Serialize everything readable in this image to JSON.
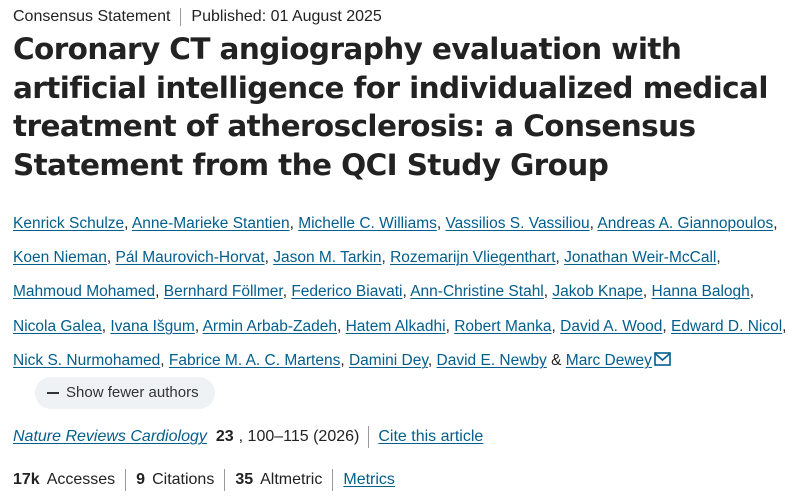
{
  "header": {
    "article_type": "Consensus Statement",
    "published": "Published: 01 August 2025"
  },
  "title": "Coronary CT angiography evaluation with artificial intelligence for individualized medical treatment of atherosclerosis: a Consensus Statement from the QCI Study Group",
  "authors": [
    "Kenrick Schulze",
    "Anne-Marieke Stantien",
    "Michelle C. Williams",
    "Vassilios S. Vassiliou",
    "Andreas A. Giannopoulos",
    "Koen Nieman",
    "Pál Maurovich-Horvat",
    "Jason M. Tarkin",
    "Rozemarijn Vliegenthart",
    "Jonathan Weir-McCall",
    "Mahmoud Mohamed",
    "Bernhard Föllmer",
    "Federico Biavati",
    "Ann-Christine Stahl",
    "Jakob Knape",
    "Hanna Balogh",
    "Nicola Galea",
    "Ivana Išgum",
    "Armin Arbab-Zadeh",
    "Hatem Alkadhi",
    "Robert Manka",
    "David A. Wood",
    "Edward D. Nicol",
    "Nick S. Nurmohamed",
    "Fabrice M. A. C. Martens",
    "Damini Dey",
    "David E. Newby",
    "Marc Dewey"
  ],
  "author_separator": ",",
  "author_and": "&",
  "show_fewer_label": "Show fewer authors",
  "citation": {
    "journal": "Nature Reviews Cardiology",
    "volume": "23",
    "pages": ", 100–115 (2026)",
    "cite_label": "Cite this article"
  },
  "metrics": {
    "accesses_value": "17k",
    "accesses_label": "Accesses",
    "citations_value": "9",
    "citations_label": "Citations",
    "altmetric_value": "35",
    "altmetric_label": "Altmetric",
    "metrics_link": "Metrics"
  },
  "colors": {
    "link": "#025e8d",
    "text": "#222222",
    "pill_bg": "#eef2f5",
    "separator": "#9a9a9a"
  },
  "icons": {
    "mail": "mail-icon",
    "collapse": "minus-icon"
  }
}
